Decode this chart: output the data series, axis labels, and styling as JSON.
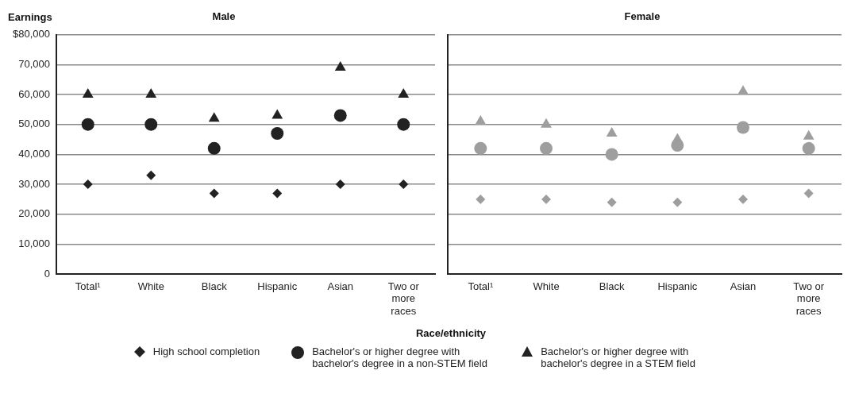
{
  "chart_data": [
    {
      "type": "scatter",
      "title": "Male",
      "ylabel": "Earnings",
      "xlabel": "Race/ethnicity",
      "categories": [
        "Total¹",
        "White",
        "Black",
        "Hispanic",
        "Asian",
        "Two or more races"
      ],
      "series": [
        {
          "name": "High school completion",
          "color": "#222222",
          "marker": "diamond",
          "values": [
            30000,
            33000,
            27000,
            27000,
            30000,
            30000
          ]
        },
        {
          "name": "Bachelor's or higher degree with bachelor's degree in a non-STEM field",
          "color": "#222222",
          "marker": "circle",
          "values": [
            50000,
            50000,
            42000,
            47000,
            53000,
            50000
          ]
        },
        {
          "name": "Bachelor's or higher degree with bachelor's degree in a STEM field",
          "color": "#222222",
          "marker": "triangle",
          "values": [
            60000,
            60000,
            52000,
            53000,
            69000,
            60000
          ]
        }
      ],
      "ylim": [
        0,
        80000
      ],
      "yticks": [
        0,
        {
          "value": 10000,
          "label": "10,000"
        },
        {
          "value": 20000,
          "label": "20,000"
        },
        {
          "value": 30000,
          "label": "30,000"
        },
        {
          "value": 40000,
          "label": "40,000"
        },
        {
          "value": 50000,
          "label": "50,000"
        },
        {
          "value": 60000,
          "label": "60,000"
        },
        {
          "value": 70000,
          "label": "70,000"
        },
        {
          "value": 80000,
          "label": "$80,000"
        }
      ],
      "grid": "y",
      "legend": "bottom"
    },
    {
      "type": "scatter",
      "title": "Female",
      "categories": [
        "Total¹",
        "White",
        "Black",
        "Hispanic",
        "Asian",
        "Two or more races"
      ],
      "series": [
        {
          "color": "#9e9e9e",
          "marker": "diamond",
          "values": [
            25000,
            25000,
            24000,
            24000,
            25000,
            27000
          ]
        },
        {
          "color": "#9e9e9e",
          "marker": "circle",
          "values": [
            42000,
            42000,
            40000,
            43000,
            49000,
            42000
          ]
        },
        {
          "color": "#9e9e9e",
          "marker": "triangle",
          "values": [
            51000,
            50000,
            47000,
            45000,
            61000,
            46000
          ]
        }
      ],
      "ylim": [
        0,
        80000
      ],
      "yticks": [
        0,
        10000,
        20000,
        30000,
        40000,
        50000,
        60000,
        70000,
        80000
      ],
      "grid": "y",
      "tick_labels": "x"
    }
  ]
}
